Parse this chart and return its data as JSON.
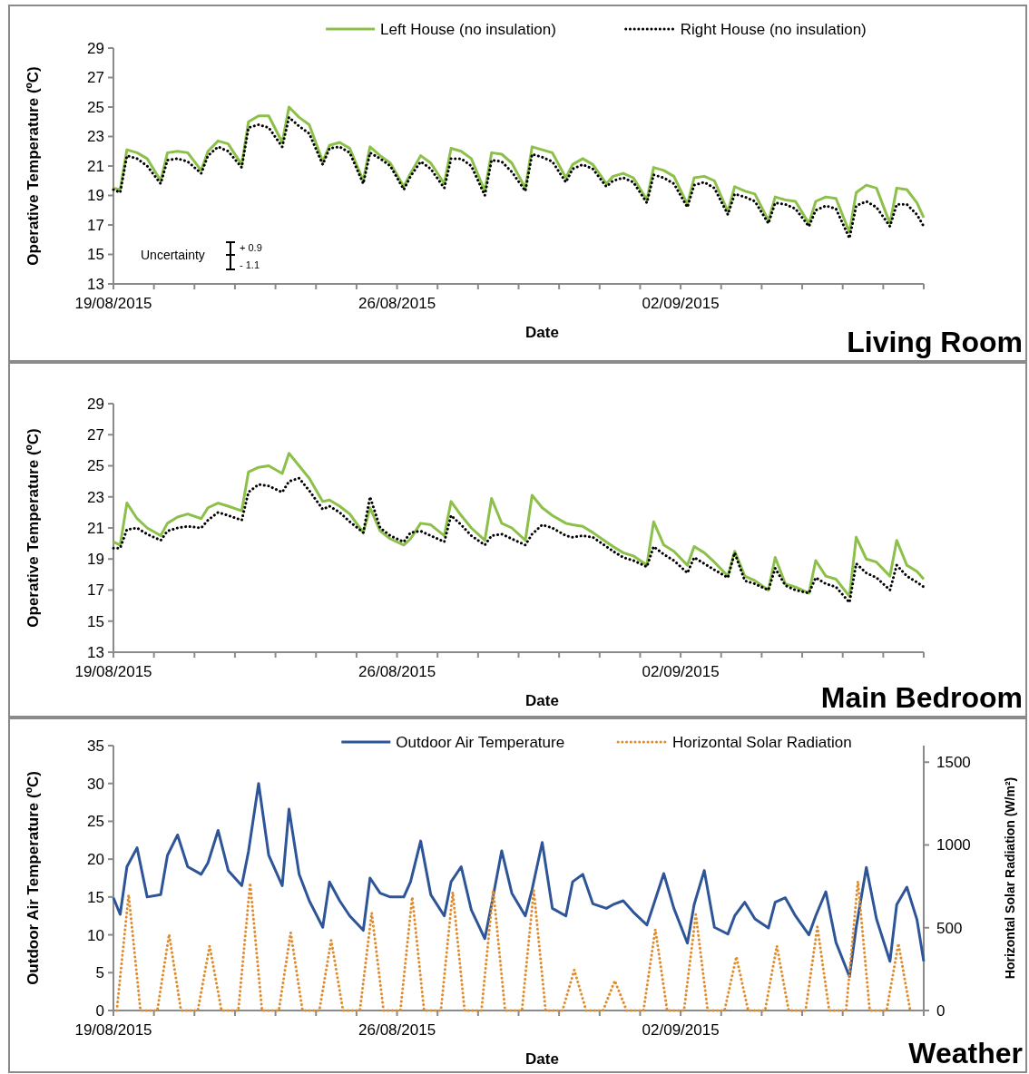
{
  "chart_data": [
    {
      "type": "line",
      "title": "Living Room",
      "xlabel": "Date",
      "ylabel": "Operative Temperature (ºC)",
      "legend": "top",
      "annotations": [
        "Uncertainty",
        "+ 0.9",
        "- 1.1"
      ],
      "xlim": [
        "2015-08-19",
        "2015-09-08"
      ],
      "ylim": [
        13,
        29
      ],
      "yticks": [
        13,
        15,
        17,
        19,
        21,
        23,
        25,
        27,
        29
      ],
      "xticks": [
        {
          "value": "2015-08-19",
          "label": "19/08/2015"
        },
        {
          "value": "2015-08-20",
          "label": null
        },
        {
          "value": "2015-08-21",
          "label": null
        },
        {
          "value": "2015-08-22",
          "label": null
        },
        {
          "value": "2015-08-23",
          "label": null
        },
        {
          "value": "2015-08-24",
          "label": null
        },
        {
          "value": "2015-08-25",
          "label": null
        },
        {
          "value": "2015-08-26",
          "label": "26/08/2015"
        },
        {
          "value": "2015-08-27",
          "label": null
        },
        {
          "value": "2015-08-28",
          "label": null
        },
        {
          "value": "2015-08-29",
          "label": null
        },
        {
          "value": "2015-08-30",
          "label": null
        },
        {
          "value": "2015-08-31",
          "label": null
        },
        {
          "value": "2015-09-01",
          "label": null
        },
        {
          "value": "2015-09-02",
          "label": "02/09/2015"
        },
        {
          "value": "2015-09-03",
          "label": null
        },
        {
          "value": "2015-09-04",
          "label": null
        },
        {
          "value": "2015-09-05",
          "label": null
        },
        {
          "value": "2015-09-06",
          "label": null
        },
        {
          "value": "2015-09-07",
          "label": null
        },
        {
          "value": "2015-09-08",
          "label": null
        }
      ],
      "x": [
        "2015-08-19T00:00",
        "2015-08-19T04:00",
        "2015-08-19T08:00",
        "2015-08-19T14:00",
        "2015-08-19T20:00",
        "2015-08-20T04:00",
        "2015-08-20T08:00",
        "2015-08-20T14:00",
        "2015-08-20T20:00",
        "2015-08-21T04:00",
        "2015-08-21T08:00",
        "2015-08-21T14:00",
        "2015-08-21T20:00",
        "2015-08-22T04:00",
        "2015-08-22T08:00",
        "2015-08-22T14:00",
        "2015-08-22T20:00",
        "2015-08-23T04:00",
        "2015-08-23T08:00",
        "2015-08-23T14:00",
        "2015-08-23T20:00",
        "2015-08-24T04:00",
        "2015-08-24T08:00",
        "2015-08-24T14:00",
        "2015-08-24T20:00",
        "2015-08-25T04:00",
        "2015-08-25T08:00",
        "2015-08-25T14:00",
        "2015-08-25T20:00",
        "2015-08-26T04:00",
        "2015-08-26T08:00",
        "2015-08-26T14:00",
        "2015-08-26T20:00",
        "2015-08-27T04:00",
        "2015-08-27T08:00",
        "2015-08-27T14:00",
        "2015-08-27T20:00",
        "2015-08-28T04:00",
        "2015-08-28T08:00",
        "2015-08-28T14:00",
        "2015-08-28T20:00",
        "2015-08-29T04:00",
        "2015-08-29T08:00",
        "2015-08-29T14:00",
        "2015-08-29T20:00",
        "2015-08-30T04:00",
        "2015-08-30T08:00",
        "2015-08-30T14:00",
        "2015-08-30T20:00",
        "2015-08-31T04:00",
        "2015-08-31T08:00",
        "2015-08-31T14:00",
        "2015-08-31T20:00",
        "2015-09-01T04:00",
        "2015-09-01T08:00",
        "2015-09-01T14:00",
        "2015-09-01T20:00",
        "2015-09-02T04:00",
        "2015-09-02T08:00",
        "2015-09-02T14:00",
        "2015-09-02T20:00",
        "2015-09-03T04:00",
        "2015-09-03T08:00",
        "2015-09-03T14:00",
        "2015-09-03T20:00",
        "2015-09-04T04:00",
        "2015-09-04T08:00",
        "2015-09-04T14:00",
        "2015-09-04T20:00",
        "2015-09-05T04:00",
        "2015-09-05T08:00",
        "2015-09-05T14:00",
        "2015-09-05T20:00",
        "2015-09-06T04:00",
        "2015-09-06T08:00",
        "2015-09-06T14:00",
        "2015-09-06T20:00",
        "2015-09-07T04:00",
        "2015-09-07T08:00",
        "2015-09-07T14:00",
        "2015-09-07T20:00",
        "2015-09-08T00:00"
      ],
      "series": [
        {
          "name": "Left House (no insulation)",
          "color": "#8cc04a",
          "line_style": "solid",
          "values": [
            19.5,
            19.4,
            22.1,
            21.9,
            21.5,
            20.0,
            21.9,
            22.0,
            21.9,
            20.7,
            22.0,
            22.7,
            22.5,
            21.1,
            24.0,
            24.4,
            24.4,
            22.6,
            25.0,
            24.3,
            23.8,
            21.3,
            22.4,
            22.6,
            22.2,
            20.0,
            22.3,
            21.7,
            21.2,
            19.6,
            20.5,
            21.7,
            21.2,
            19.8,
            22.2,
            22.0,
            21.5,
            19.3,
            21.9,
            21.8,
            21.2,
            19.5,
            22.3,
            22.1,
            21.9,
            20.2,
            21.1,
            21.5,
            21.1,
            19.8,
            20.3,
            20.5,
            20.2,
            18.7,
            20.9,
            20.7,
            20.3,
            18.4,
            20.2,
            20.3,
            20.0,
            17.9,
            19.6,
            19.3,
            19.1,
            17.3,
            18.9,
            18.7,
            18.6,
            17.1,
            18.6,
            18.9,
            18.8,
            16.5,
            19.2,
            19.7,
            19.5,
            17.1,
            19.5,
            19.4,
            18.5,
            17.5
          ]
        },
        {
          "name": "Right House (no insulation)",
          "color": "#000000",
          "line_style": "dotted",
          "values": [
            19.4,
            19.2,
            21.7,
            21.5,
            21.0,
            19.8,
            21.4,
            21.5,
            21.3,
            20.5,
            21.7,
            22.3,
            22.0,
            20.9,
            23.6,
            23.8,
            23.6,
            22.3,
            24.3,
            23.7,
            23.2,
            21.1,
            22.2,
            22.3,
            21.9,
            19.8,
            21.9,
            21.5,
            21.0,
            19.4,
            20.3,
            21.3,
            20.8,
            19.5,
            21.5,
            21.5,
            21.0,
            19.0,
            21.4,
            21.3,
            20.6,
            19.3,
            21.8,
            21.6,
            21.3,
            19.9,
            20.8,
            21.1,
            20.8,
            19.6,
            20.0,
            20.2,
            19.9,
            18.5,
            20.4,
            20.2,
            19.8,
            18.2,
            19.7,
            19.9,
            19.5,
            17.7,
            19.1,
            18.9,
            18.6,
            17.1,
            18.5,
            18.4,
            18.1,
            16.9,
            18.0,
            18.3,
            18.1,
            16.1,
            18.3,
            18.6,
            18.2,
            16.9,
            18.4,
            18.4,
            17.7,
            16.9
          ]
        }
      ]
    },
    {
      "type": "line",
      "title": "Main Bedroom",
      "xlabel": "Date",
      "ylabel": "Operative Temperature (ºC)",
      "xlim": [
        "2015-08-19",
        "2015-09-08"
      ],
      "ylim": [
        13,
        29
      ],
      "yticks": [
        13,
        15,
        17,
        19,
        21,
        23,
        25,
        27,
        29
      ],
      "xticks": [
        {
          "value": "2015-08-19",
          "label": "19/08/2015"
        },
        {
          "value": "2015-08-20",
          "label": null
        },
        {
          "value": "2015-08-21",
          "label": null
        },
        {
          "value": "2015-08-22",
          "label": null
        },
        {
          "value": "2015-08-23",
          "label": null
        },
        {
          "value": "2015-08-24",
          "label": null
        },
        {
          "value": "2015-08-25",
          "label": null
        },
        {
          "value": "2015-08-26",
          "label": "26/08/2015"
        },
        {
          "value": "2015-08-27",
          "label": null
        },
        {
          "value": "2015-08-28",
          "label": null
        },
        {
          "value": "2015-08-29",
          "label": null
        },
        {
          "value": "2015-08-30",
          "label": null
        },
        {
          "value": "2015-08-31",
          "label": null
        },
        {
          "value": "2015-09-01",
          "label": null
        },
        {
          "value": "2015-09-02",
          "label": "02/09/2015"
        },
        {
          "value": "2015-09-03",
          "label": null
        },
        {
          "value": "2015-09-04",
          "label": null
        },
        {
          "value": "2015-09-05",
          "label": null
        },
        {
          "value": "2015-09-06",
          "label": null
        },
        {
          "value": "2015-09-07",
          "label": null
        },
        {
          "value": "2015-09-08",
          "label": null
        }
      ],
      "x": [
        "2015-08-19T00:00",
        "2015-08-19T04:00",
        "2015-08-19T08:00",
        "2015-08-19T14:00",
        "2015-08-19T20:00",
        "2015-08-20T04:00",
        "2015-08-20T08:00",
        "2015-08-20T14:00",
        "2015-08-20T20:00",
        "2015-08-21T04:00",
        "2015-08-21T08:00",
        "2015-08-21T14:00",
        "2015-08-21T20:00",
        "2015-08-22T04:00",
        "2015-08-22T08:00",
        "2015-08-22T14:00",
        "2015-08-22T20:00",
        "2015-08-23T04:00",
        "2015-08-23T08:00",
        "2015-08-23T14:00",
        "2015-08-23T20:00",
        "2015-08-24T04:00",
        "2015-08-24T08:00",
        "2015-08-24T14:00",
        "2015-08-24T20:00",
        "2015-08-25T04:00",
        "2015-08-25T08:00",
        "2015-08-25T14:00",
        "2015-08-25T20:00",
        "2015-08-26T04:00",
        "2015-08-26T08:00",
        "2015-08-26T14:00",
        "2015-08-26T20:00",
        "2015-08-27T04:00",
        "2015-08-27T08:00",
        "2015-08-27T14:00",
        "2015-08-27T20:00",
        "2015-08-28T04:00",
        "2015-08-28T08:00",
        "2015-08-28T14:00",
        "2015-08-28T20:00",
        "2015-08-29T04:00",
        "2015-08-29T08:00",
        "2015-08-29T14:00",
        "2015-08-29T20:00",
        "2015-08-30T04:00",
        "2015-08-30T08:00",
        "2015-08-30T14:00",
        "2015-08-30T20:00",
        "2015-08-31T04:00",
        "2015-08-31T08:00",
        "2015-08-31T14:00",
        "2015-08-31T20:00",
        "2015-09-01T04:00",
        "2015-09-01T08:00",
        "2015-09-01T14:00",
        "2015-09-01T20:00",
        "2015-09-02T04:00",
        "2015-09-02T08:00",
        "2015-09-02T14:00",
        "2015-09-02T20:00",
        "2015-09-03T04:00",
        "2015-09-03T08:00",
        "2015-09-03T14:00",
        "2015-09-03T20:00",
        "2015-09-04T04:00",
        "2015-09-04T08:00",
        "2015-09-04T14:00",
        "2015-09-04T20:00",
        "2015-09-05T04:00",
        "2015-09-05T08:00",
        "2015-09-05T14:00",
        "2015-09-05T20:00",
        "2015-09-06T04:00",
        "2015-09-06T08:00",
        "2015-09-06T14:00",
        "2015-09-06T20:00",
        "2015-09-07T04:00",
        "2015-09-07T08:00",
        "2015-09-07T14:00",
        "2015-09-07T20:00",
        "2015-09-08T00:00"
      ],
      "series": [
        {
          "color": "#8cc04a",
          "line_style": "solid",
          "values": [
            20.1,
            19.9,
            22.6,
            21.6,
            21.0,
            20.5,
            21.3,
            21.7,
            21.9,
            21.6,
            22.3,
            22.6,
            22.4,
            22.1,
            24.6,
            24.9,
            25.0,
            24.5,
            25.8,
            25.0,
            24.2,
            22.7,
            22.8,
            22.4,
            21.9,
            20.7,
            22.3,
            20.8,
            20.3,
            19.9,
            20.3,
            21.3,
            21.2,
            20.5,
            22.7,
            21.8,
            21.0,
            20.2,
            22.9,
            21.3,
            21.0,
            20.2,
            23.1,
            22.3,
            21.8,
            21.3,
            21.2,
            21.1,
            20.7,
            20.1,
            19.8,
            19.4,
            19.2,
            18.6,
            21.4,
            19.9,
            19.5,
            18.6,
            19.8,
            19.4,
            18.8,
            17.9,
            19.5,
            17.9,
            17.6,
            17.0,
            19.1,
            17.4,
            17.2,
            16.8,
            18.9,
            17.9,
            17.7,
            16.6,
            20.4,
            19.0,
            18.8,
            17.9,
            20.2,
            18.6,
            18.2,
            17.7
          ]
        },
        {
          "color": "#000000",
          "line_style": "dotted",
          "values": [
            19.7,
            19.7,
            20.9,
            21.0,
            20.6,
            20.2,
            20.8,
            21.0,
            21.1,
            21.0,
            21.5,
            22.0,
            21.8,
            21.5,
            23.3,
            23.8,
            23.7,
            23.3,
            24.0,
            24.2,
            23.4,
            22.2,
            22.4,
            22.0,
            21.4,
            20.7,
            23.0,
            21.0,
            20.5,
            20.1,
            20.7,
            20.8,
            20.5,
            20.1,
            21.8,
            21.2,
            20.5,
            19.9,
            20.5,
            20.6,
            20.3,
            19.9,
            20.6,
            21.2,
            21.0,
            20.5,
            20.4,
            20.5,
            20.4,
            19.8,
            19.5,
            19.1,
            18.9,
            18.5,
            19.8,
            19.3,
            18.9,
            18.1,
            19.1,
            18.7,
            18.3,
            17.8,
            19.4,
            17.6,
            17.4,
            17.0,
            18.4,
            17.3,
            17.0,
            16.8,
            17.8,
            17.4,
            17.2,
            16.2,
            18.7,
            18.1,
            17.8,
            17.0,
            18.6,
            17.9,
            17.5,
            17.2
          ]
        }
      ]
    },
    {
      "type": "line",
      "title": "Weather",
      "xlabel": "Date",
      "ylabel": "Outdoor Air Temperature (ºC)",
      "y2label": "Horizontal Solar Radiation (W/m²)",
      "legend": "top",
      "xlim": [
        "2015-08-19",
        "2015-09-08"
      ],
      "ylim": [
        0,
        35
      ],
      "yticks": [
        0,
        5,
        10,
        15,
        20,
        25,
        30,
        35
      ],
      "y2lim": [
        0,
        1600
      ],
      "y2ticks": [
        0,
        500,
        1000,
        1500
      ],
      "xticks": [
        {
          "value": "2015-08-19",
          "label": "19/08/2015"
        },
        {
          "value": "2015-08-20",
          "label": null
        },
        {
          "value": "2015-08-21",
          "label": null
        },
        {
          "value": "2015-08-22",
          "label": null
        },
        {
          "value": "2015-08-23",
          "label": null
        },
        {
          "value": "2015-08-24",
          "label": null
        },
        {
          "value": "2015-08-25",
          "label": null
        },
        {
          "value": "2015-08-26",
          "label": "26/08/2015"
        },
        {
          "value": "2015-08-27",
          "label": null
        },
        {
          "value": "2015-08-28",
          "label": null
        },
        {
          "value": "2015-08-29",
          "label": null
        },
        {
          "value": "2015-08-30",
          "label": null
        },
        {
          "value": "2015-08-31",
          "label": null
        },
        {
          "value": "2015-09-01",
          "label": null
        },
        {
          "value": "2015-09-02",
          "label": "02/09/2015"
        },
        {
          "value": "2015-09-03",
          "label": null
        },
        {
          "value": "2015-09-04",
          "label": null
        },
        {
          "value": "2015-09-05",
          "label": null
        },
        {
          "value": "2015-09-06",
          "label": null
        },
        {
          "value": "2015-09-07",
          "label": null
        },
        {
          "value": "2015-09-08",
          "label": null
        }
      ],
      "x": [
        "2015-08-19T00:00",
        "2015-08-19T04:00",
        "2015-08-19T08:00",
        "2015-08-19T14:00",
        "2015-08-19T20:00",
        "2015-08-20T04:00",
        "2015-08-20T08:00",
        "2015-08-20T14:00",
        "2015-08-20T20:00",
        "2015-08-21T04:00",
        "2015-08-21T08:00",
        "2015-08-21T14:00",
        "2015-08-21T20:00",
        "2015-08-22T04:00",
        "2015-08-22T08:00",
        "2015-08-22T14:00",
        "2015-08-22T20:00",
        "2015-08-23T04:00",
        "2015-08-23T08:00",
        "2015-08-23T14:00",
        "2015-08-23T20:00",
        "2015-08-24T04:00",
        "2015-08-24T08:00",
        "2015-08-24T14:00",
        "2015-08-24T20:00",
        "2015-08-25T04:00",
        "2015-08-25T08:00",
        "2015-08-25T14:00",
        "2015-08-25T20:00",
        "2015-08-26T04:00",
        "2015-08-26T08:00",
        "2015-08-26T14:00",
        "2015-08-26T20:00",
        "2015-08-27T04:00",
        "2015-08-27T08:00",
        "2015-08-27T14:00",
        "2015-08-27T20:00",
        "2015-08-28T04:00",
        "2015-08-28T08:00",
        "2015-08-28T14:00",
        "2015-08-28T20:00",
        "2015-08-29T04:00",
        "2015-08-29T08:00",
        "2015-08-29T14:00",
        "2015-08-29T20:00",
        "2015-08-30T04:00",
        "2015-08-30T08:00",
        "2015-08-30T14:00",
        "2015-08-30T20:00",
        "2015-08-31T04:00",
        "2015-08-31T08:00",
        "2015-08-31T14:00",
        "2015-08-31T20:00",
        "2015-09-01T04:00",
        "2015-09-01T08:00",
        "2015-09-01T14:00",
        "2015-09-01T20:00",
        "2015-09-02T04:00",
        "2015-09-02T08:00",
        "2015-09-02T14:00",
        "2015-09-02T20:00",
        "2015-09-03T04:00",
        "2015-09-03T08:00",
        "2015-09-03T14:00",
        "2015-09-03T20:00",
        "2015-09-04T04:00",
        "2015-09-04T08:00",
        "2015-09-04T14:00",
        "2015-09-04T20:00",
        "2015-09-05T04:00",
        "2015-09-05T08:00",
        "2015-09-05T14:00",
        "2015-09-05T20:00",
        "2015-09-06T04:00",
        "2015-09-06T08:00",
        "2015-09-06T14:00",
        "2015-09-06T20:00",
        "2015-09-07T04:00",
        "2015-09-07T08:00",
        "2015-09-07T14:00",
        "2015-09-07T20:00",
        "2015-09-08T00:00"
      ],
      "series": [
        {
          "name": "Outdoor Air Temperature",
          "color": "#2e5597",
          "line_style": "solid",
          "values": [
            14.9,
            12.7,
            19.0,
            21.5,
            15.0,
            15.3,
            20.5,
            23.2,
            19.0,
            18.0,
            19.5,
            23.8,
            18.5,
            16.5,
            21.0,
            30.0,
            20.5,
            16.5,
            26.6,
            18.0,
            14.5,
            11.0,
            17.0,
            14.5,
            12.5,
            10.6,
            17.5,
            15.5,
            15.0,
            15.0,
            17.0,
            22.4,
            15.3,
            12.5,
            17.0,
            19.0,
            13.3,
            9.5,
            14.0,
            21.1,
            15.5,
            12.5,
            16.0,
            22.2,
            13.5,
            12.5,
            17.0,
            18.0,
            14.1,
            13.5,
            14.0,
            14.5,
            13.0,
            11.3,
            14.0,
            18.1,
            13.5,
            8.9,
            14.0,
            18.5,
            11.0,
            10.1,
            12.5,
            14.3,
            12.1,
            10.9,
            14.3,
            14.9,
            12.5,
            10.0,
            12.5,
            15.7,
            9.0,
            4.5,
            11.0,
            18.9,
            12.1,
            6.5,
            14.0,
            16.3,
            12.0,
            6.5
          ]
        },
        {
          "name": "Horizontal Solar Radiation",
          "color": "#e08b2c",
          "line_style": "dotted",
          "axis": "y2",
          "x": [
            "2015-08-19T02:00",
            "2015-08-19T09:00",
            "2015-08-19T16:00",
            "2015-08-20T02:00",
            "2015-08-20T09:00",
            "2015-08-20T16:00",
            "2015-08-21T02:00",
            "2015-08-21T09:00",
            "2015-08-21T16:00",
            "2015-08-22T02:00",
            "2015-08-22T09:00",
            "2015-08-22T16:00",
            "2015-08-23T02:00",
            "2015-08-23T09:00",
            "2015-08-23T16:00",
            "2015-08-24T02:00",
            "2015-08-24T09:00",
            "2015-08-24T16:00",
            "2015-08-25T02:00",
            "2015-08-25T09:00",
            "2015-08-25T16:00",
            "2015-08-26T02:00",
            "2015-08-26T09:00",
            "2015-08-26T16:00",
            "2015-08-27T02:00",
            "2015-08-27T09:00",
            "2015-08-27T16:00",
            "2015-08-28T02:00",
            "2015-08-28T09:00",
            "2015-08-28T16:00",
            "2015-08-29T02:00",
            "2015-08-29T09:00",
            "2015-08-29T16:00",
            "2015-08-30T02:00",
            "2015-08-30T09:00",
            "2015-08-30T16:00",
            "2015-08-31T02:00",
            "2015-08-31T09:00",
            "2015-08-31T16:00",
            "2015-09-01T02:00",
            "2015-09-01T09:00",
            "2015-09-01T16:00",
            "2015-09-02T02:00",
            "2015-09-02T09:00",
            "2015-09-02T16:00",
            "2015-09-03T02:00",
            "2015-09-03T09:00",
            "2015-09-03T16:00",
            "2015-09-04T02:00",
            "2015-09-04T09:00",
            "2015-09-04T16:00",
            "2015-09-05T02:00",
            "2015-09-05T09:00",
            "2015-09-05T16:00",
            "2015-09-06T02:00",
            "2015-09-06T09:00",
            "2015-09-06T16:00",
            "2015-09-07T02:00",
            "2015-09-07T09:00",
            "2015-09-07T16:00"
          ],
          "values": [
            0,
            700,
            0,
            0,
            460,
            0,
            0,
            390,
            0,
            0,
            770,
            0,
            0,
            470,
            0,
            0,
            425,
            0,
            0,
            590,
            0,
            0,
            685,
            0,
            0,
            715,
            0,
            0,
            725,
            0,
            0,
            725,
            0,
            0,
            245,
            0,
            0,
            180,
            0,
            0,
            490,
            0,
            0,
            580,
            0,
            0,
            325,
            0,
            0,
            390,
            0,
            0,
            505,
            0,
            0,
            780,
            0,
            0,
            405,
            0
          ]
        }
      ]
    }
  ]
}
